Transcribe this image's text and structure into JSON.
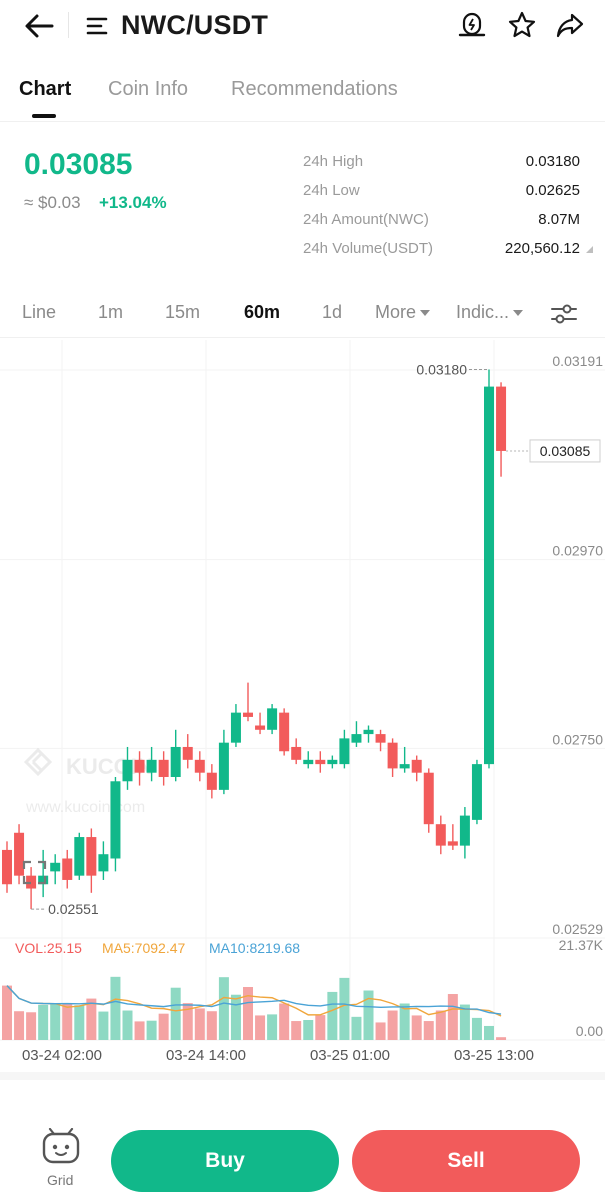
{
  "header": {
    "title": "NWC/USDT",
    "icons": [
      "back-arrow-icon",
      "menu-lines-icon",
      "price-alert-icon",
      "star-icon",
      "share-icon"
    ]
  },
  "tabs": [
    {
      "label": "Chart",
      "active": true
    },
    {
      "label": "Coin Info",
      "active": false
    },
    {
      "label": "Recommendations",
      "active": false
    }
  ],
  "ticker": {
    "last_price": "0.03085",
    "fiat_price": "≈ $0.03",
    "change_percent": "+13.04%",
    "stats": [
      {
        "label": "24h High",
        "value": "0.03180"
      },
      {
        "label": "24h Low",
        "value": "0.02625"
      },
      {
        "label": "24h Amount(NWC)",
        "value": "8.07M"
      },
      {
        "label": "24h Volume(USDT)",
        "value": "220,560.12"
      }
    ]
  },
  "timeframes": [
    {
      "label": "Line",
      "active": false
    },
    {
      "label": "1m",
      "active": false
    },
    {
      "label": "15m",
      "active": false
    },
    {
      "label": "60m",
      "active": true
    },
    {
      "label": "1d",
      "active": false
    },
    {
      "label": "More",
      "active": false
    },
    {
      "label": "Indic...",
      "active": false
    }
  ],
  "colors": {
    "up": "#11b88a",
    "down": "#f25b5b",
    "ma5": "#f0a63c",
    "ma10": "#4aa3d6"
  },
  "watermark": {
    "brand": "KUCOIN",
    "url": "www.kucoin.com"
  },
  "chart_data": {
    "type": "candlestick",
    "y_ticks": [
      "0.03191",
      "0.02970",
      "0.02750",
      "0.02529"
    ],
    "ylim": [
      0.02529,
      0.03191
    ],
    "current_price_label": "0.03085",
    "high_marker": "0.03180",
    "low_marker": "0.02551",
    "x_ticks": [
      "03-24 02:00",
      "03-24 14:00",
      "03-25 01:00",
      "03-25 13:00"
    ],
    "candles": [
      {
        "o": 0.0262,
        "c": 0.0258,
        "h": 0.0263,
        "l": 0.0257
      },
      {
        "o": 0.0264,
        "c": 0.0259,
        "h": 0.0265,
        "l": 0.0258
      },
      {
        "o": 0.0259,
        "c": 0.02575,
        "h": 0.026,
        "l": 0.02551
      },
      {
        "o": 0.0258,
        "c": 0.0259,
        "h": 0.0262,
        "l": 0.02565
      },
      {
        "o": 0.02595,
        "c": 0.02605,
        "h": 0.02615,
        "l": 0.0258
      },
      {
        "o": 0.0261,
        "c": 0.02585,
        "h": 0.0262,
        "l": 0.02575
      },
      {
        "o": 0.0259,
        "c": 0.02635,
        "h": 0.0264,
        "l": 0.02585
      },
      {
        "o": 0.02635,
        "c": 0.0259,
        "h": 0.02645,
        "l": 0.0257
      },
      {
        "o": 0.02595,
        "c": 0.02615,
        "h": 0.0263,
        "l": 0.02585
      },
      {
        "o": 0.0261,
        "c": 0.027,
        "h": 0.02705,
        "l": 0.02595
      },
      {
        "o": 0.027,
        "c": 0.02725,
        "h": 0.0274,
        "l": 0.0269
      },
      {
        "o": 0.02725,
        "c": 0.0271,
        "h": 0.02735,
        "l": 0.02695
      },
      {
        "o": 0.0271,
        "c": 0.02725,
        "h": 0.0274,
        "l": 0.027
      },
      {
        "o": 0.02725,
        "c": 0.02705,
        "h": 0.02735,
        "l": 0.02695
      },
      {
        "o": 0.02705,
        "c": 0.0274,
        "h": 0.0276,
        "l": 0.027
      },
      {
        "o": 0.0274,
        "c": 0.02725,
        "h": 0.02755,
        "l": 0.02715
      },
      {
        "o": 0.02725,
        "c": 0.0271,
        "h": 0.02735,
        "l": 0.027
      },
      {
        "o": 0.0271,
        "c": 0.0269,
        "h": 0.0272,
        "l": 0.0268
      },
      {
        "o": 0.0269,
        "c": 0.02745,
        "h": 0.0276,
        "l": 0.02685
      },
      {
        "o": 0.02745,
        "c": 0.0278,
        "h": 0.0279,
        "l": 0.0274
      },
      {
        "o": 0.0278,
        "c": 0.02775,
        "h": 0.02815,
        "l": 0.0277
      },
      {
        "o": 0.02765,
        "c": 0.0276,
        "h": 0.0278,
        "l": 0.02755
      },
      {
        "o": 0.0276,
        "c": 0.02785,
        "h": 0.0279,
        "l": 0.02755
      },
      {
        "o": 0.0278,
        "c": 0.02735,
        "h": 0.02785,
        "l": 0.0273
      },
      {
        "o": 0.0274,
        "c": 0.02725,
        "h": 0.0275,
        "l": 0.0272
      },
      {
        "o": 0.0272,
        "c": 0.02725,
        "h": 0.02735,
        "l": 0.02715
      },
      {
        "o": 0.02725,
        "c": 0.0272,
        "h": 0.02735,
        "l": 0.0271
      },
      {
        "o": 0.0272,
        "c": 0.02725,
        "h": 0.0273,
        "l": 0.02715
      },
      {
        "o": 0.0272,
        "c": 0.0275,
        "h": 0.0276,
        "l": 0.02715
      },
      {
        "o": 0.02745,
        "c": 0.02755,
        "h": 0.0277,
        "l": 0.0274
      },
      {
        "o": 0.02755,
        "c": 0.0276,
        "h": 0.02765,
        "l": 0.02745
      },
      {
        "o": 0.02755,
        "c": 0.02745,
        "h": 0.0276,
        "l": 0.02735
      },
      {
        "o": 0.02745,
        "c": 0.02715,
        "h": 0.0275,
        "l": 0.02705
      },
      {
        "o": 0.02715,
        "c": 0.0272,
        "h": 0.0274,
        "l": 0.0271
      },
      {
        "o": 0.02725,
        "c": 0.0271,
        "h": 0.0273,
        "l": 0.027
      },
      {
        "o": 0.0271,
        "c": 0.0265,
        "h": 0.02715,
        "l": 0.0264
      },
      {
        "o": 0.0265,
        "c": 0.02625,
        "h": 0.0266,
        "l": 0.02615
      },
      {
        "o": 0.0263,
        "c": 0.02625,
        "h": 0.0265,
        "l": 0.0262
      },
      {
        "o": 0.02625,
        "c": 0.0266,
        "h": 0.0267,
        "l": 0.0261
      },
      {
        "o": 0.02655,
        "c": 0.0272,
        "h": 0.02725,
        "l": 0.0265
      },
      {
        "o": 0.0272,
        "c": 0.0316,
        "h": 0.0318,
        "l": 0.02715
      },
      {
        "o": 0.0316,
        "c": 0.03085,
        "h": 0.03165,
        "l": 0.03055
      }
    ],
    "volume": {
      "label": "VOL:25.15",
      "ma5_label": "MA5:7092.47",
      "ma10_label": "MA10:8219.68",
      "max_label": "21.37K",
      "min_label": "0.00",
      "values": [
        15.5,
        8.2,
        7.9,
        10.0,
        10.2,
        10.4,
        9.9,
        11.8,
        8.1,
        18.0,
        8.4,
        5.3,
        5.5,
        7.5,
        14.9,
        10.5,
        9.0,
        8.2,
        17.9,
        12.9,
        15.1,
        7.0,
        7.3,
        10.4,
        5.4,
        5.7,
        7.1,
        13.7,
        17.7,
        6.6,
        14.1,
        5.0,
        8.4,
        10.4,
        7.0,
        5.4,
        8.4,
        13.1,
        10.1,
        6.3,
        4.0,
        0.8
      ]
    }
  },
  "actions": {
    "grid_label": "Grid",
    "buy_label": "Buy",
    "sell_label": "Sell"
  }
}
